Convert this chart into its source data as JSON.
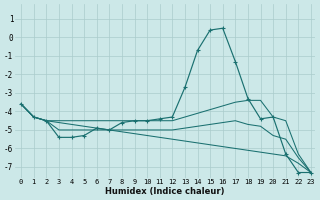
{
  "bg_color": "#cce8e8",
  "grid_color": "#aacccc",
  "line_color": "#1a7070",
  "xlabel": "Humidex (Indice chaleur)",
  "xlim_min": -0.5,
  "xlim_max": 23.3,
  "ylim_min": -7.6,
  "ylim_max": 1.8,
  "yticks": [
    1,
    0,
    -1,
    -2,
    -3,
    -4,
    -5,
    -6,
    -7
  ],
  "xticks": [
    0,
    1,
    2,
    3,
    4,
    5,
    6,
    7,
    8,
    9,
    10,
    11,
    12,
    13,
    14,
    15,
    16,
    17,
    18,
    19,
    20,
    21,
    22,
    23
  ],
  "x": [
    0,
    1,
    2,
    3,
    4,
    5,
    6,
    7,
    8,
    9,
    10,
    11,
    12,
    13,
    14,
    15,
    16,
    17,
    18,
    19,
    20,
    21,
    22,
    23
  ],
  "y_main": [
    -3.6,
    -4.3,
    -4.5,
    -5.4,
    -5.4,
    -5.3,
    -4.9,
    -5.0,
    -4.6,
    -4.5,
    -4.5,
    -4.4,
    -4.3,
    -2.7,
    -0.7,
    0.4,
    0.5,
    -1.3,
    -3.3,
    -4.4,
    -4.3,
    -6.3,
    -7.3,
    -7.3
  ],
  "y_upper": [
    -3.6,
    -4.3,
    -4.5,
    -4.5,
    -4.5,
    -4.5,
    -4.5,
    -4.5,
    -4.5,
    -4.5,
    -4.5,
    -4.5,
    -4.5,
    -4.3,
    -4.1,
    -3.9,
    -3.7,
    -3.5,
    -3.4,
    -3.4,
    -4.3,
    -4.5,
    -6.3,
    -7.3
  ],
  "y_lower": [
    -3.6,
    -4.3,
    -4.5,
    -4.6,
    -4.7,
    -4.8,
    -4.9,
    -5.0,
    -5.1,
    -5.2,
    -5.3,
    -5.4,
    -5.5,
    -5.6,
    -5.7,
    -5.8,
    -5.9,
    -6.0,
    -6.1,
    -6.2,
    -6.3,
    -6.4,
    -6.8,
    -7.3
  ],
  "y_mid": [
    -3.6,
    -4.3,
    -4.5,
    -5.0,
    -5.0,
    -5.0,
    -5.0,
    -5.0,
    -5.0,
    -5.0,
    -5.0,
    -5.0,
    -5.0,
    -4.9,
    -4.8,
    -4.7,
    -4.6,
    -4.5,
    -4.7,
    -4.8,
    -5.3,
    -5.5,
    -6.5,
    -7.3
  ]
}
